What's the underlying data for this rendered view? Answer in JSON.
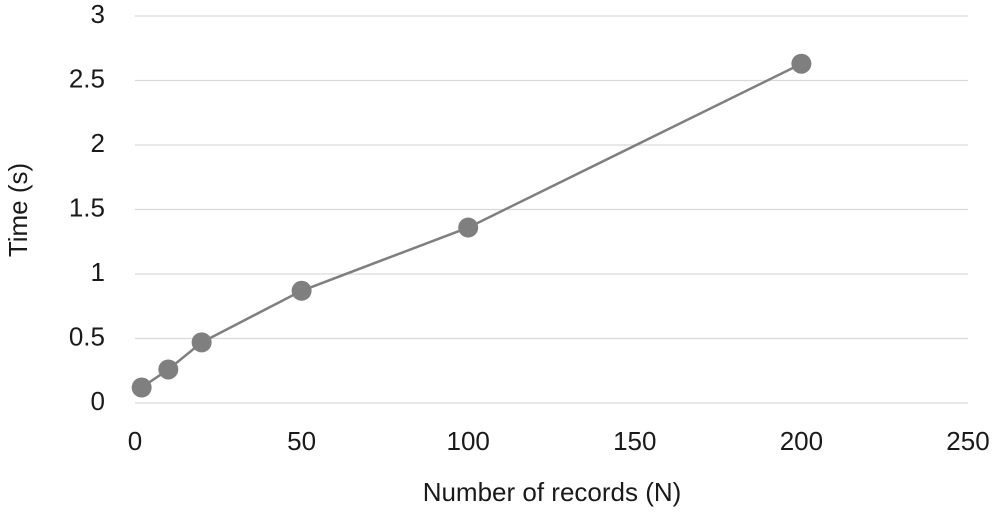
{
  "chart_data": {
    "type": "line",
    "x_label": "Number of records (N)",
    "y_label": "Time (s)",
    "x": [
      2,
      10,
      20,
      50,
      100,
      200
    ],
    "values": [
      0.12,
      0.26,
      0.47,
      0.87,
      1.36,
      2.63
    ],
    "color": "#7f7f7f",
    "xlim": [
      0,
      250
    ],
    "xticks": [
      0,
      50,
      100,
      150,
      200,
      250
    ],
    "ylim": [
      0,
      3
    ],
    "yticks": [
      0,
      0.5,
      1,
      1.5,
      2,
      2.5,
      3
    ],
    "grid": true
  }
}
